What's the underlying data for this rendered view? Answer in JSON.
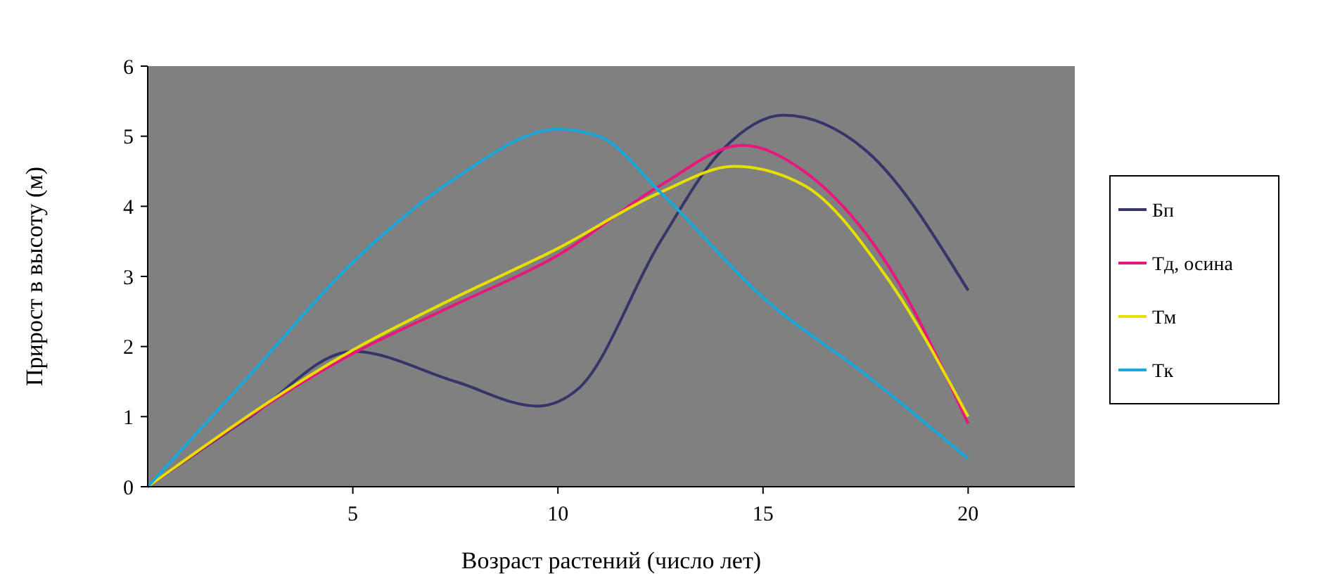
{
  "chart_data": {
    "type": "line",
    "xlabel": "Возраст растений (число лет)",
    "ylabel": "Прирост в высоту (м)",
    "xlim": [
      0,
      22.6
    ],
    "xticks": [
      5,
      10,
      15,
      20
    ],
    "ylim": [
      0,
      6
    ],
    "yticks": [
      0,
      1,
      2,
      3,
      4,
      5,
      6
    ],
    "grid": false,
    "legend": "right",
    "marker": "none",
    "line_style": "solid",
    "series": [
      {
        "name": "Бп",
        "color": "#35356a",
        "x": [
          0,
          2.5,
          5,
          7.5,
          9.5,
          10.5,
          12.5,
          14,
          15.5,
          17.5,
          20
        ],
        "values": [
          0,
          1,
          1.93,
          1.5,
          1.15,
          1.4,
          3.5,
          4.8,
          5.3,
          4.8,
          2.8
        ]
      },
      {
        "name": "Тд, осина",
        "color": "#e8177c",
        "x": [
          0,
          5,
          7.5,
          10,
          12.5,
          14.5,
          16,
          18,
          20
        ],
        "values": [
          0,
          1.9,
          2.6,
          3.3,
          4.3,
          4.87,
          4.5,
          3.2,
          0.9
        ]
      },
      {
        "name": "Тм",
        "color": "#e6e000",
        "x": [
          0,
          5,
          7.5,
          10,
          12.5,
          14.3,
          16,
          18,
          20
        ],
        "values": [
          0,
          1.95,
          2.7,
          3.4,
          4.2,
          4.57,
          4.3,
          3,
          1
        ]
      },
      {
        "name": "Тк",
        "color": "#18a8dc",
        "x": [
          0,
          2.5,
          5,
          7.5,
          10,
          11,
          12.5,
          15,
          17.5,
          20
        ],
        "values": [
          0,
          1.6,
          3.2,
          4.4,
          5.1,
          5,
          4.2,
          2.7,
          1.6,
          0.4
        ]
      }
    ]
  }
}
